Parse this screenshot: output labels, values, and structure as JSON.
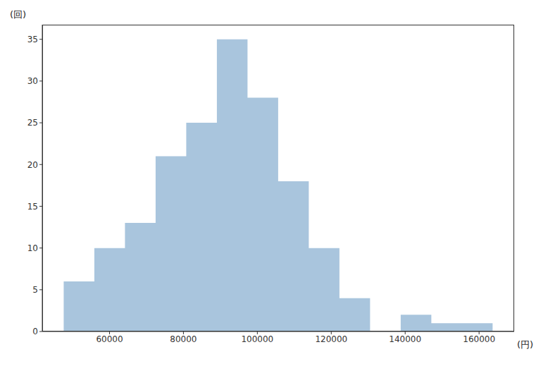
{
  "chart_data": {
    "type": "histogram",
    "ylabel": "(回)",
    "xlabel": "(円)",
    "bins": [
      47600,
      55890,
      64180,
      72470,
      80760,
      89050,
      97340,
      105630,
      113920,
      122210,
      130500,
      138790,
      147080,
      155370,
      163660
    ],
    "values": [
      6,
      10,
      13,
      21,
      25,
      35,
      28,
      18,
      10,
      4,
      0,
      2,
      1,
      1
    ],
    "color": "#a9c5dd",
    "xlim": [
      41800,
      169500
    ],
    "ylim": [
      0,
      36.75
    ],
    "xticks": [
      60000,
      80000,
      100000,
      120000,
      140000,
      160000
    ],
    "yticks": [
      0,
      5,
      10,
      15,
      20,
      25,
      30,
      35
    ],
    "grid": false
  }
}
